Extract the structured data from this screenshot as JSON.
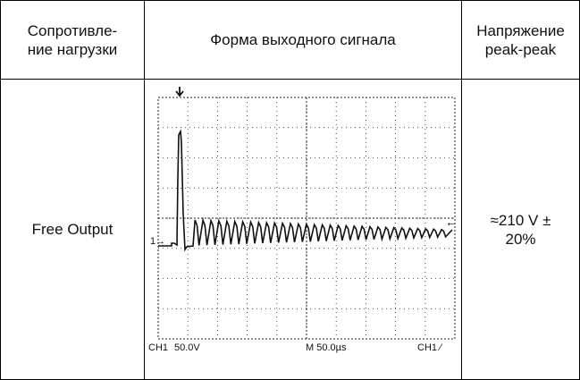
{
  "table": {
    "headers": [
      "Сопротивле-\nние нагрузки",
      "Форма выходного сигнала",
      "Напряжение\npeak-peak"
    ],
    "row": {
      "load": "Free Output",
      "voltage": "≈210 V ±\n20%"
    }
  },
  "scope": {
    "ch_label": "CH1",
    "volts_div": "50.0V",
    "timebase": "M 50.0µs",
    "trigger": "CH1 ⁄",
    "marker": "1→",
    "trigger_arrow": "←"
  }
}
